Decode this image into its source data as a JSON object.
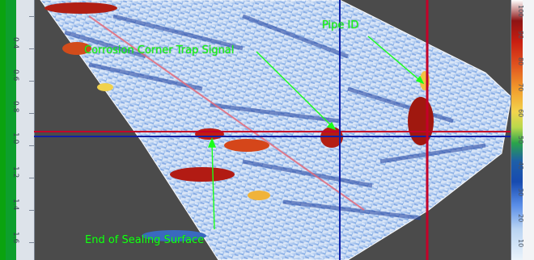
{
  "ruler": {
    "ticks": [
      "0.4",
      "0.6",
      "0.8",
      "1.0",
      "1.2",
      "1.4",
      "1.6"
    ]
  },
  "annotations": {
    "pipe_id": "Pipe ID",
    "corrosion": "Corrosion Corner Trap Signal",
    "sealing": "End of Sealing Surface"
  },
  "colorbar": {
    "labels": [
      "100",
      "90",
      "80",
      "70",
      "60",
      "50",
      "40",
      "30",
      "20",
      "10"
    ]
  },
  "colors": {
    "annotation": "#19ff19",
    "cursor_red": "#c40029",
    "cursor_blue": "#1120a5"
  }
}
